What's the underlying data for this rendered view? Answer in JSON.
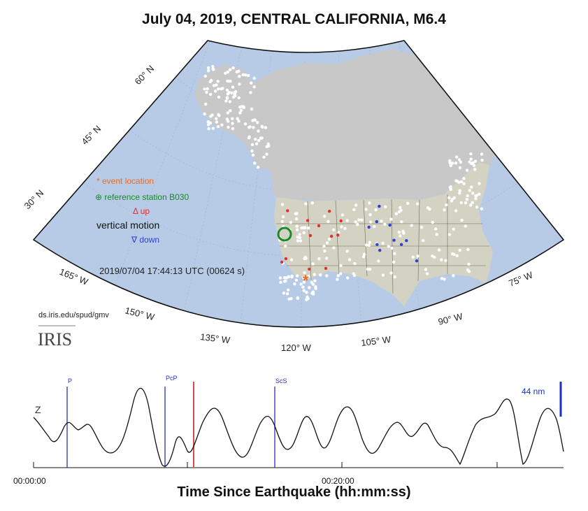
{
  "title": "July 04, 2019, CENTRAL CALIFORNIA, M6.4",
  "legend": {
    "event_location": "* event location",
    "reference_station": "⊕ reference station B030",
    "up": "Δ up",
    "vertical_motion": "vertical motion",
    "down": "∇ down"
  },
  "timestamp": "2019/07/04 17:44:13 UTC (00624 s)",
  "credit": {
    "url": "ds.iris.edu/spud/gmv",
    "logo": "IRIS"
  },
  "map": {
    "lat_labels": [
      "60° N",
      "45° N",
      "30° N"
    ],
    "lon_labels": [
      "165° W",
      "150° W",
      "135° W",
      "120° W",
      "105° W",
      "90° W",
      "75° W"
    ],
    "colors": {
      "ocean": "#b7cbe6",
      "land": "#d4d2c2",
      "land_far": "#c8c8c8",
      "event": "#f26a1b",
      "reference": "#1a8a2a",
      "up": "#e03030",
      "down": "#3040d0",
      "station": "#ffffff"
    }
  },
  "seismogram": {
    "channel": "Z",
    "phases": [
      "P",
      "PcP",
      "ScS"
    ],
    "scale": "44 nm",
    "tick_labels": [
      "00:00:00",
      "00:20:00"
    ],
    "xlabel": "Time Since Earthquake (hh:mm:ss)",
    "colors": {
      "trace": "#111111",
      "phase": "#2030c0",
      "cursor": "#d05050"
    }
  }
}
